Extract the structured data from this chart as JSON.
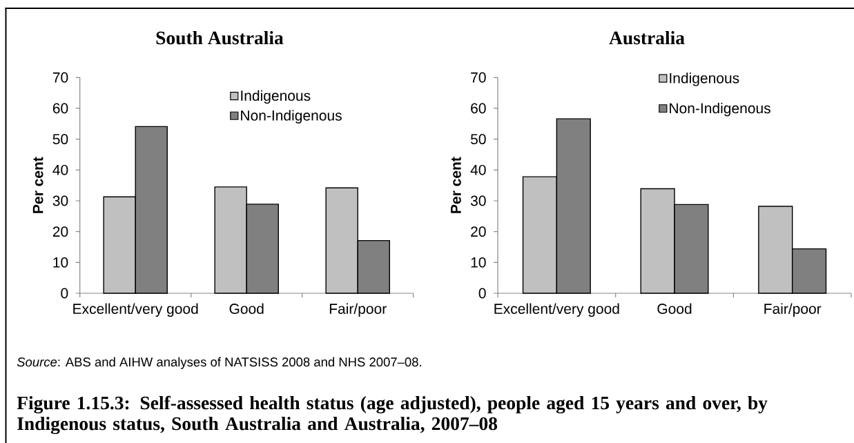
{
  "chart_data": [
    {
      "type": "bar",
      "title": "South Australia",
      "ylabel": "Per cent",
      "categories": [
        "Excellent/very good",
        "Good",
        "Fair/poor"
      ],
      "series": [
        {
          "name": "Indigenous",
          "color": "#c0c0c0",
          "values": [
            31.3,
            34.5,
            34.2
          ]
        },
        {
          "name": "Non-Indigenous",
          "color": "#808080",
          "values": [
            54.1,
            28.9,
            17.1
          ]
        }
      ],
      "ylim": [
        0,
        70
      ],
      "yticks": [
        0,
        10,
        20,
        30,
        40,
        50,
        60,
        70
      ],
      "legend": "top right"
    },
    {
      "type": "bar",
      "title": "Australia",
      "ylabel": "Per cent",
      "categories": [
        "Excellent/very good",
        "Good",
        "Fair/poor"
      ],
      "series": [
        {
          "name": "Indigenous",
          "color": "#c0c0c0",
          "values": [
            37.8,
            33.9,
            28.2
          ]
        },
        {
          "name": "Non-Indigenous",
          "color": "#808080",
          "values": [
            56.6,
            28.8,
            14.4
          ]
        }
      ],
      "ylim": [
        0,
        70
      ],
      "yticks": [
        0,
        10,
        20,
        30,
        40,
        50,
        60,
        70
      ],
      "legend": "top right",
      "annotations": [
        "*Source*: ABS and AIHW analyses of NATSISS 2008 and NHS 2007–08.",
        "Figure 1.15.3: Self-assessed health status (age adjusted), people aged 15 years and over, by Indigenous status, South Australia and Australia, 2007–08"
      ]
    }
  ]
}
